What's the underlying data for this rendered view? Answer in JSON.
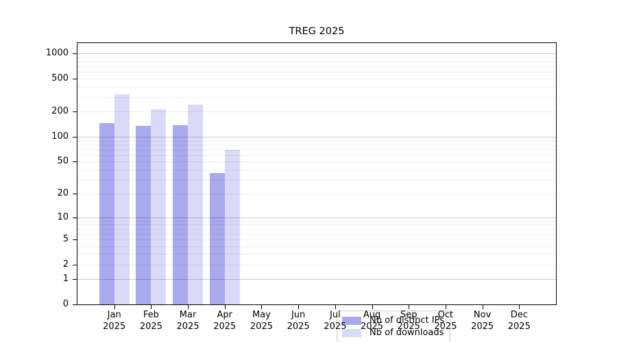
{
  "chart_data": {
    "type": "bar",
    "title": "TREG 2025",
    "categories": [
      "Jan 2025",
      "Feb 2025",
      "Mar 2025",
      "Apr 2025",
      "May 2025",
      "Jun 2025",
      "Jul 2025",
      "Aug 2025",
      "Sep 2025",
      "Oct 2025",
      "Nov 2025",
      "Dec 2025"
    ],
    "x_tick_months": [
      "Jan",
      "Feb",
      "Mar",
      "Apr",
      "May",
      "Jun",
      "Jul",
      "Aug",
      "Sep",
      "Oct",
      "Nov",
      "Dec"
    ],
    "x_tick_year": "2025",
    "series": [
      {
        "name": "Nb of distinct IPs",
        "color": "#a9a9f0",
        "values": [
          145,
          135,
          138,
          36,
          null,
          null,
          null,
          null,
          null,
          null,
          null,
          null
        ]
      },
      {
        "name": "Nb of downloads",
        "color": "#dadaf8",
        "values": [
          325,
          215,
          243,
          70,
          null,
          null,
          null,
          null,
          null,
          null,
          null,
          null
        ]
      }
    ],
    "xlabel": "",
    "ylabel": "",
    "y_scale": "symlog-log1p",
    "y_ticks": [
      0,
      1,
      2,
      5,
      10,
      20,
      50,
      100,
      200,
      500,
      1000
    ],
    "y_minor_gridlines": [
      2,
      3,
      4,
      5,
      6,
      7,
      8,
      9,
      20,
      30,
      40,
      50,
      60,
      70,
      80,
      90,
      200,
      300,
      400,
      500,
      600,
      700,
      800,
      900
    ],
    "y_major_gridlines": [
      1,
      10,
      100,
      1000
    ],
    "ylim": [
      0,
      1370
    ],
    "grid": "horizontal major+minor",
    "legend_position": "lower center",
    "colors": {
      "bar_distinct_ips": "#a9a9f0",
      "bar_downloads": "#dadaf8",
      "major_gridline": "#c9c9c9",
      "minor_gridline": "#ececec",
      "axis": "#000000",
      "legend_border": "#cccccc"
    }
  }
}
